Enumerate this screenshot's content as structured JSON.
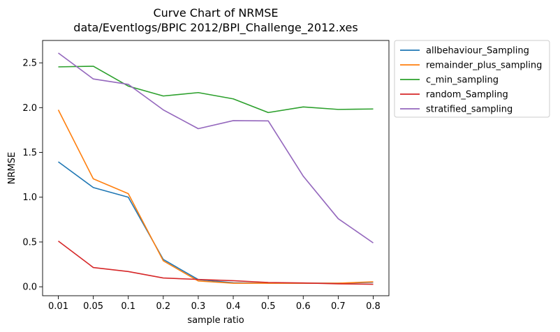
{
  "chart_data": {
    "type": "line",
    "title": "Curve Chart of NRMSE",
    "subtitle": "data/Eventlogs/BPIC 2012/BPI_Challenge_2012.xes",
    "xlabel": "sample ratio",
    "ylabel": "NRMSE",
    "categories": [
      "0.01",
      "0.05",
      "0.1",
      "0.2",
      "0.3",
      "0.4",
      "0.5",
      "0.6",
      "0.7",
      "0.8"
    ],
    "yticks": [
      "0.0",
      "0.5",
      "1.0",
      "1.5",
      "2.0",
      "2.5"
    ],
    "ylim": [
      -0.1,
      2.75
    ],
    "grid": false,
    "legend_position": "outside-top-right",
    "series": [
      {
        "name": "allbehaviour_Sampling",
        "color": "#1f77b4",
        "values": [
          1.395,
          1.108,
          1.0,
          0.305,
          0.08,
          0.045,
          0.04,
          0.04,
          0.04,
          0.05
        ]
      },
      {
        "name": "remainder_plus_sampling",
        "color": "#ff7f0e",
        "values": [
          1.975,
          1.205,
          1.04,
          0.29,
          0.065,
          0.04,
          0.04,
          0.04,
          0.04,
          0.055
        ]
      },
      {
        "name": "c_min_sampling",
        "color": "#2ca02c",
        "values": [
          2.455,
          2.462,
          2.24,
          2.13,
          2.168,
          2.098,
          1.945,
          2.008,
          1.98,
          1.985
        ]
      },
      {
        "name": "random_Sampling",
        "color": "#d62728",
        "values": [
          0.51,
          0.215,
          0.17,
          0.098,
          0.082,
          0.068,
          0.048,
          0.043,
          0.033,
          0.028
        ]
      },
      {
        "name": "stratified_sampling",
        "color": "#9467bd",
        "values": [
          2.61,
          2.32,
          2.26,
          1.975,
          1.765,
          1.855,
          1.852,
          1.235,
          0.76,
          0.49
        ]
      }
    ]
  }
}
